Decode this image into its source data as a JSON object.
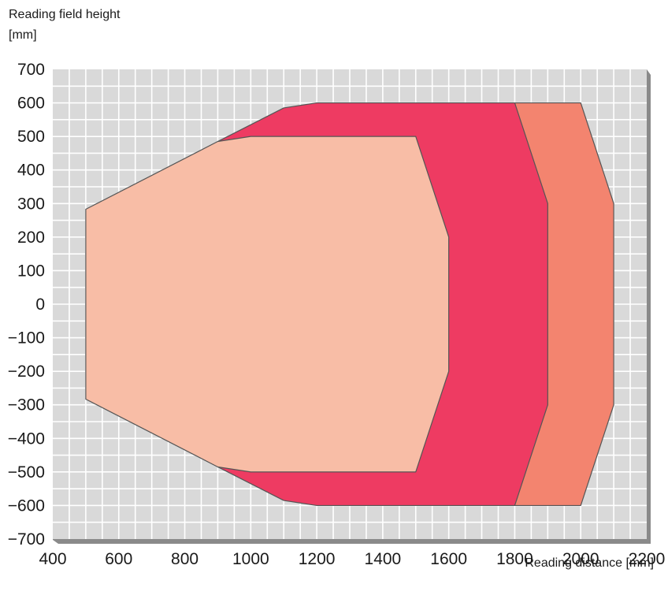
{
  "chart_data": {
    "type": "area",
    "ylabel_line1": "Reading field height",
    "ylabel_line2": "[mm]",
    "xlabel": "Reading distance [mm]",
    "xlim": [
      400,
      2200
    ],
    "ylim": [
      -700,
      700
    ],
    "x_ticks": [
      400,
      600,
      800,
      1000,
      1200,
      1400,
      1600,
      1800,
      2000,
      2200
    ],
    "y_ticks": [
      700,
      600,
      500,
      400,
      300,
      200,
      100,
      0,
      -100,
      -200,
      -300,
      -400,
      -500,
      -600,
      -700
    ],
    "y_tick_labels": [
      "700",
      "600",
      "500",
      "400",
      "300",
      "200",
      "100",
      "0",
      "−100",
      "−200",
      "−300",
      "−400",
      "−500",
      "−600",
      "−700"
    ],
    "grid": true,
    "series": [
      {
        "color": "#f3846f",
        "points": [
          [
            1800,
            600
          ],
          [
            2000,
            600
          ],
          [
            2100,
            300
          ],
          [
            2100,
            -300
          ],
          [
            2000,
            -600
          ],
          [
            1800,
            -600
          ]
        ]
      },
      {
        "color": "#ee3b62",
        "points": [
          [
            900,
            485
          ],
          [
            1100,
            585
          ],
          [
            1200,
            600
          ],
          [
            1800,
            600
          ],
          [
            1900,
            300
          ],
          [
            1900,
            -300
          ],
          [
            1800,
            -600
          ],
          [
            1200,
            -600
          ],
          [
            1100,
            -585
          ],
          [
            900,
            -485
          ]
        ]
      },
      {
        "color": "#f8bda6",
        "points": [
          [
            500,
            283
          ],
          [
            900,
            485
          ],
          [
            1000,
            500
          ],
          [
            1500,
            500
          ],
          [
            1600,
            200
          ],
          [
            1600,
            -200
          ],
          [
            1500,
            -500
          ],
          [
            1000,
            -500
          ],
          [
            900,
            -485
          ],
          [
            500,
            -283
          ]
        ]
      }
    ]
  }
}
